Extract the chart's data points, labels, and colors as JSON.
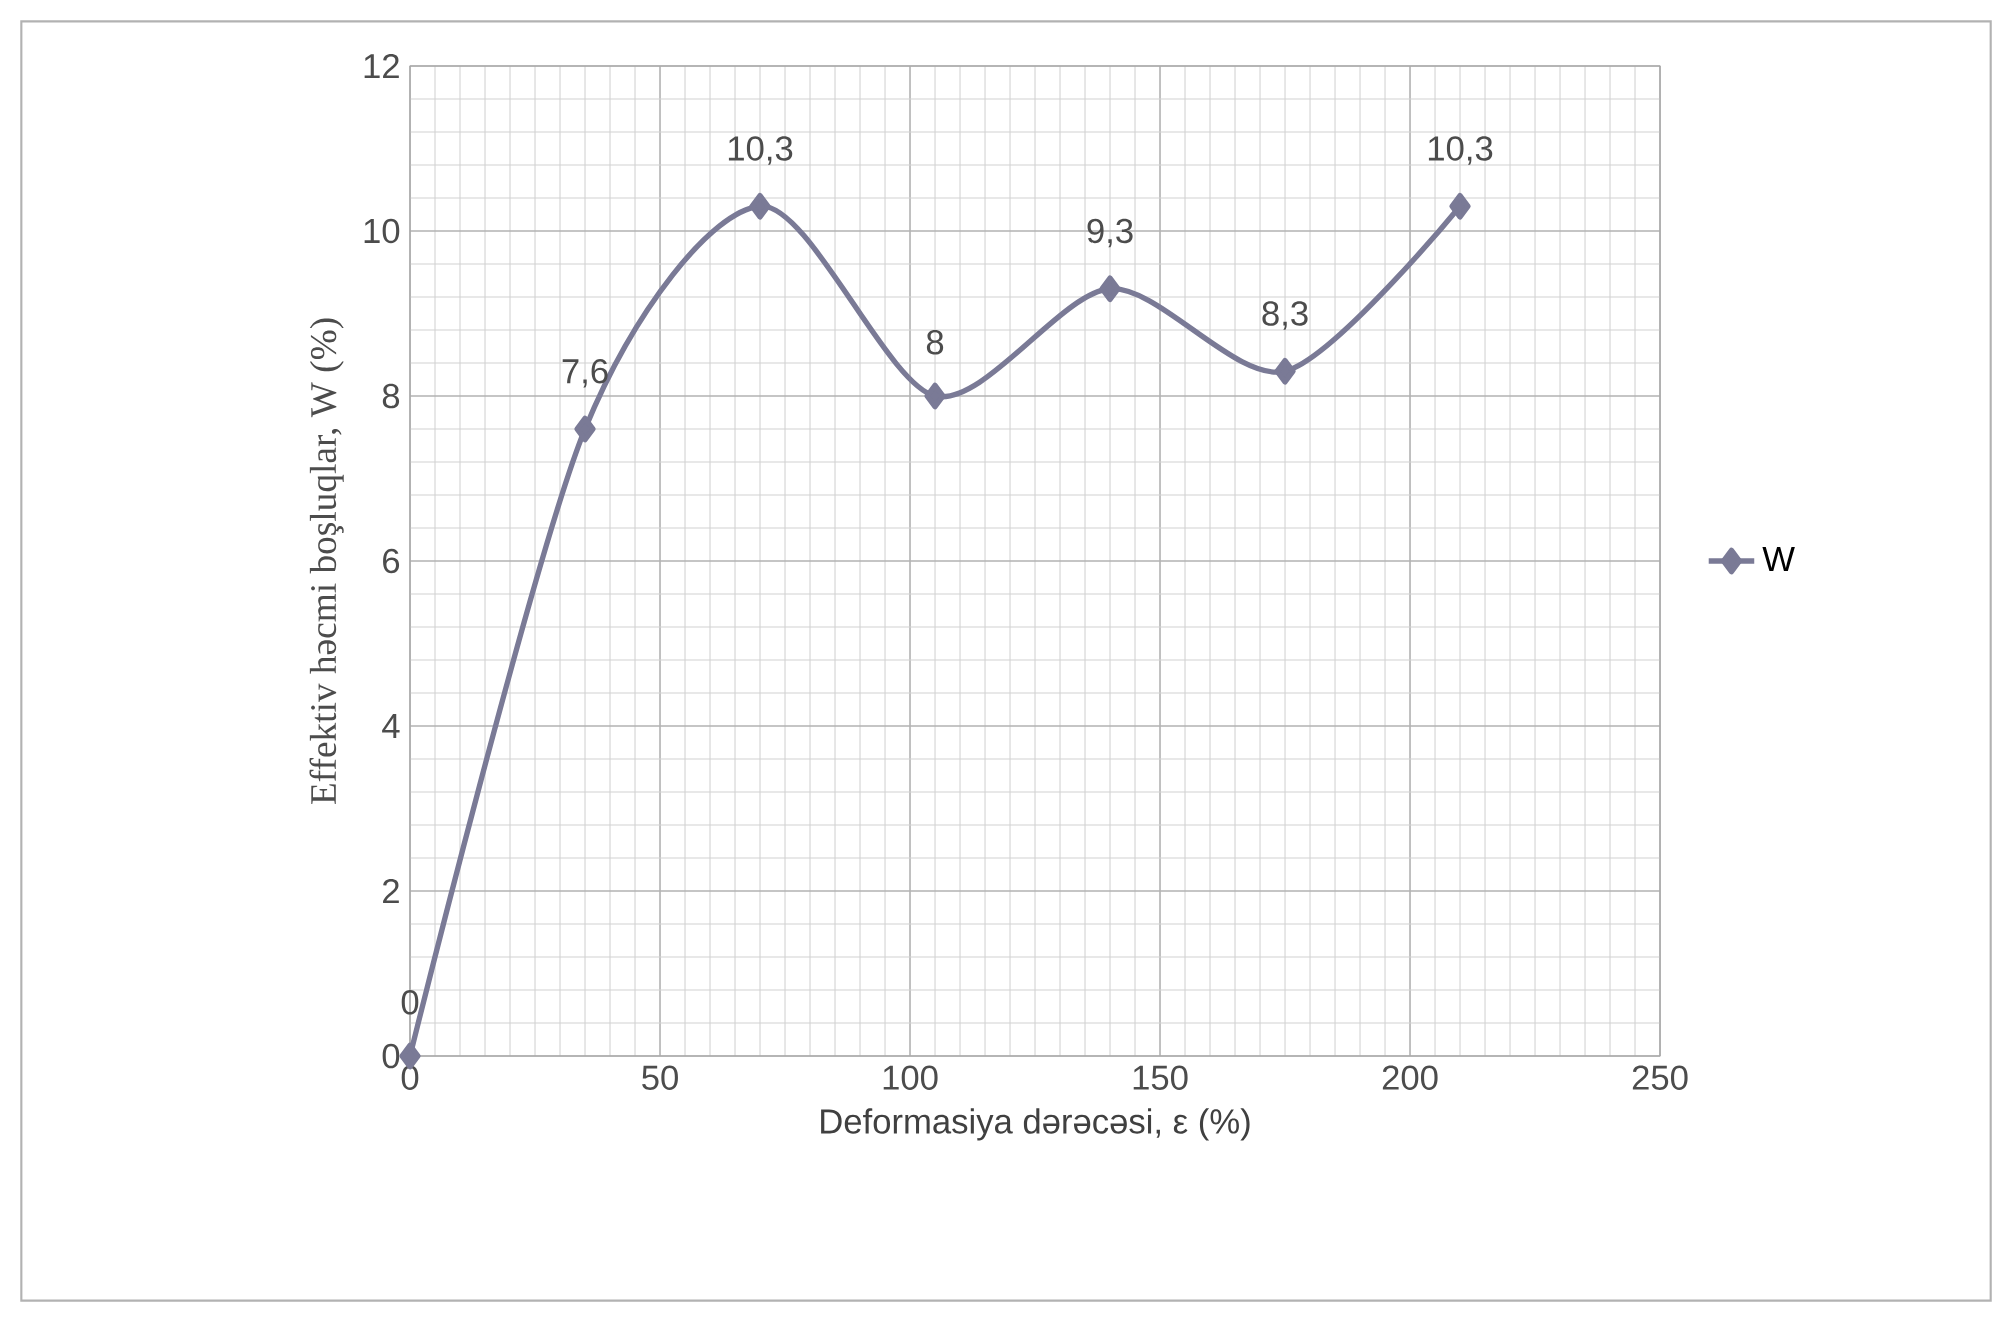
{
  "chart_data": {
    "type": "line",
    "xlabel": "Deformasiya dərəcəsi, ε (%)",
    "ylabel": "Effektiv həcmi boşluqlar,  W (%)",
    "x": [
      0,
      35,
      70,
      105,
      140,
      175,
      210
    ],
    "series": [
      {
        "name": "W",
        "color": "#7a7a96",
        "values": [
          0,
          7.6,
          10.3,
          8,
          9.3,
          8.3,
          10.3
        ],
        "value_labels": [
          "0",
          "7,6",
          "10,3",
          "8",
          "9,3",
          "8,3",
          "10,3"
        ]
      }
    ],
    "xlim": [
      0,
      250
    ],
    "xticks": [
      0,
      50,
      100,
      150,
      200,
      250
    ],
    "ylim": [
      0,
      12
    ],
    "yticks": [
      0,
      2,
      4,
      6,
      8,
      10,
      12
    ],
    "grid": true,
    "legend": "right",
    "marker": "diamond",
    "line_style": "solid"
  }
}
